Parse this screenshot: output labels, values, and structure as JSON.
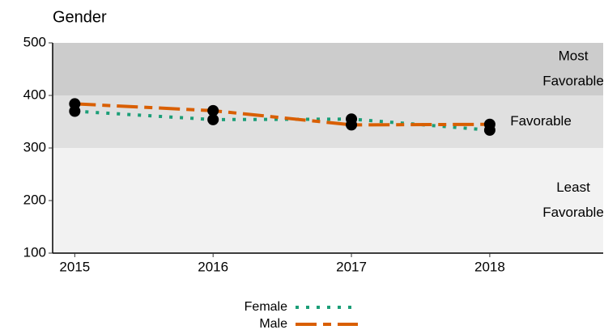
{
  "chart_data": {
    "type": "line",
    "title": "Gender",
    "x": [
      2015,
      2016,
      2017,
      2018
    ],
    "series": [
      {
        "name": "Female",
        "color": "#1b9e77",
        "style": "dotted",
        "values": [
          370,
          354,
          355,
          334
        ]
      },
      {
        "name": "Male",
        "color": "#d95f02",
        "style": "dashed",
        "values": [
          384,
          371,
          344,
          345
        ]
      }
    ],
    "bands": [
      {
        "range": [
          400,
          500
        ],
        "color": "#cccccc",
        "label": [
          "Most",
          "Favorable"
        ]
      },
      {
        "range": [
          300,
          400
        ],
        "color": "#e0e0e0",
        "label": [
          "Favorable"
        ]
      },
      {
        "range": [
          100,
          300
        ],
        "color": "#f2f2f2",
        "label": [
          "Least",
          "Favorable"
        ]
      }
    ],
    "xlim": [
      2014.84,
      2018.82
    ],
    "xticks": [
      2015,
      2016,
      2017,
      2018
    ],
    "ylim": [
      100,
      500
    ],
    "yticks": [
      100,
      200,
      300,
      400,
      500
    ],
    "legend": "bottom"
  }
}
